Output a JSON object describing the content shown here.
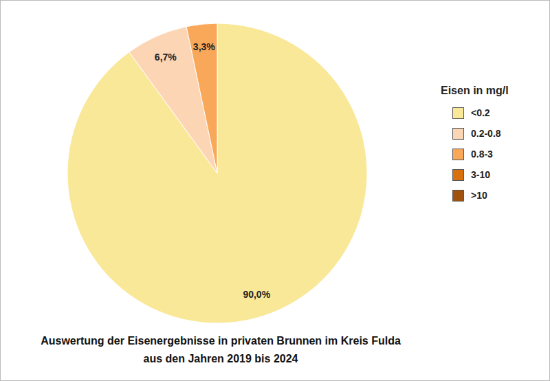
{
  "chart_data": {
    "type": "pie",
    "title": "Auswertung der Eisenergebnisse in privaten Brunnen im Kreis Fulda\naus den Jahren 2019 bis 2024",
    "legend_title": "Eisen in mg/l",
    "categories": [
      "<0.2",
      "0.2-0.8",
      "0.8-3",
      "3-10",
      ">10"
    ],
    "values": [
      90.0,
      6.7,
      3.3,
      0,
      0
    ],
    "value_labels": [
      "90,0%",
      "6,7%",
      "3,3%",
      null,
      null
    ],
    "colors": [
      "#F9E898",
      "#FCD5B5",
      "#F9A85A",
      "#D9700F",
      "#A0520F"
    ],
    "data_labels": true,
    "legend": "right"
  }
}
